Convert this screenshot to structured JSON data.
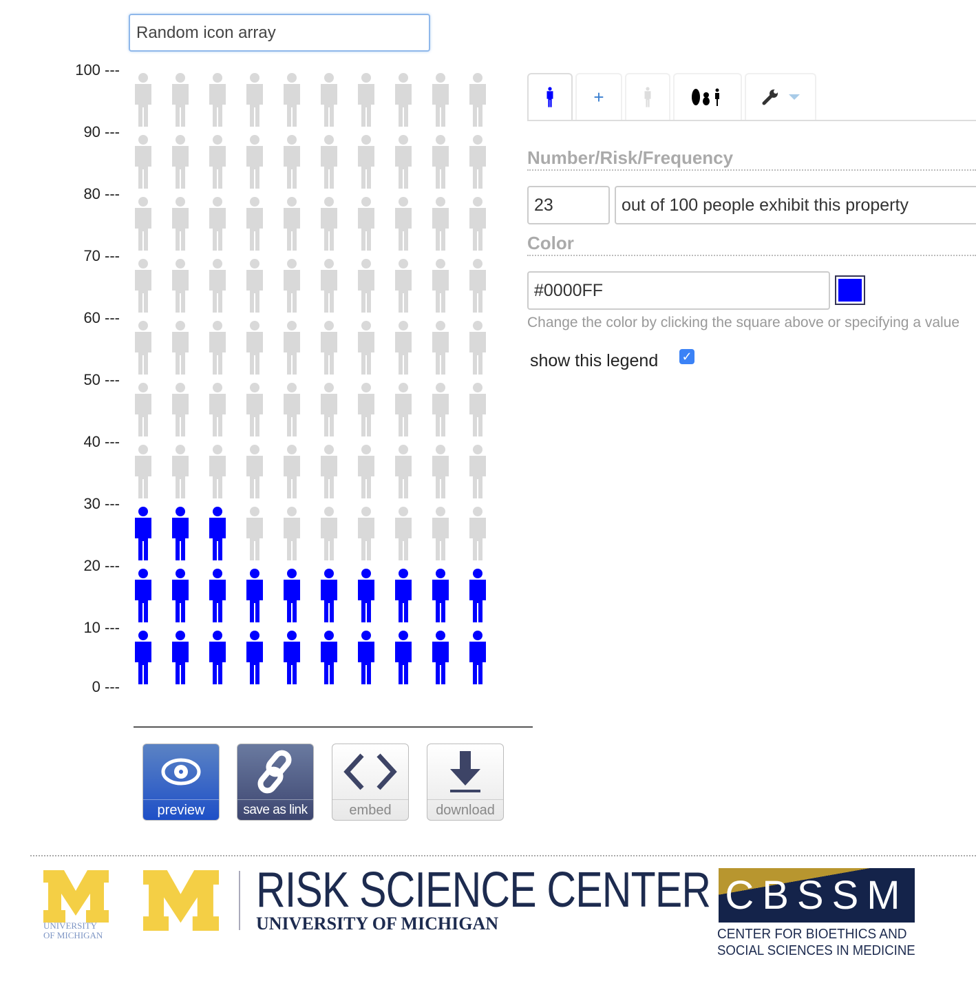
{
  "title_input": {
    "value": "Random icon array"
  },
  "y_axis": {
    "labels": [
      "100 ---",
      "90 ---",
      "80 ---",
      "70 ---",
      "60 ---",
      "50 ---",
      "40 ---",
      "30 ---",
      "20 ---",
      "10 ---",
      "0 ---"
    ]
  },
  "icon_array": {
    "total": 100,
    "highlighted": 23,
    "columns": 10,
    "highlight_color": "#0000FF",
    "base_color": "#D9D9D9"
  },
  "actions": [
    {
      "label": "preview",
      "icon": "eye-icon"
    },
    {
      "label": "save as link",
      "icon": "link-icon"
    },
    {
      "label": "embed",
      "icon": "code-icon"
    },
    {
      "label": "download",
      "icon": "download-icon"
    }
  ],
  "tabs": [
    {
      "icon": "person-blue-icon"
    },
    {
      "icon": "plus-icon"
    },
    {
      "icon": "person-gray-icon"
    },
    {
      "icon": "icon-shapes-icon"
    },
    {
      "icon": "wrench-icon"
    }
  ],
  "panel": {
    "number_heading": "Number/Risk/Frequency",
    "number_value": "23",
    "number_suffix": "out of 100 people exhibit this property",
    "color_heading": "Color",
    "color_value": "#0000FF",
    "color_hint": "Change the color by clicking the square above or specifying a value",
    "legend_label": "show this legend",
    "legend_checked": true
  },
  "footer": {
    "um_logo": "UNIVERSITY OF MICHIGAN",
    "rsc_title": "RISK SCIENCE CENTER",
    "rsc_subtitle": "UNIVERSITY OF MICHIGAN",
    "cbssm": "CBSSM",
    "cbssm_line1": "CENTER FOR BIOETHICS AND",
    "cbssm_line2": "SOCIAL SCIENCES IN MEDICINE"
  }
}
